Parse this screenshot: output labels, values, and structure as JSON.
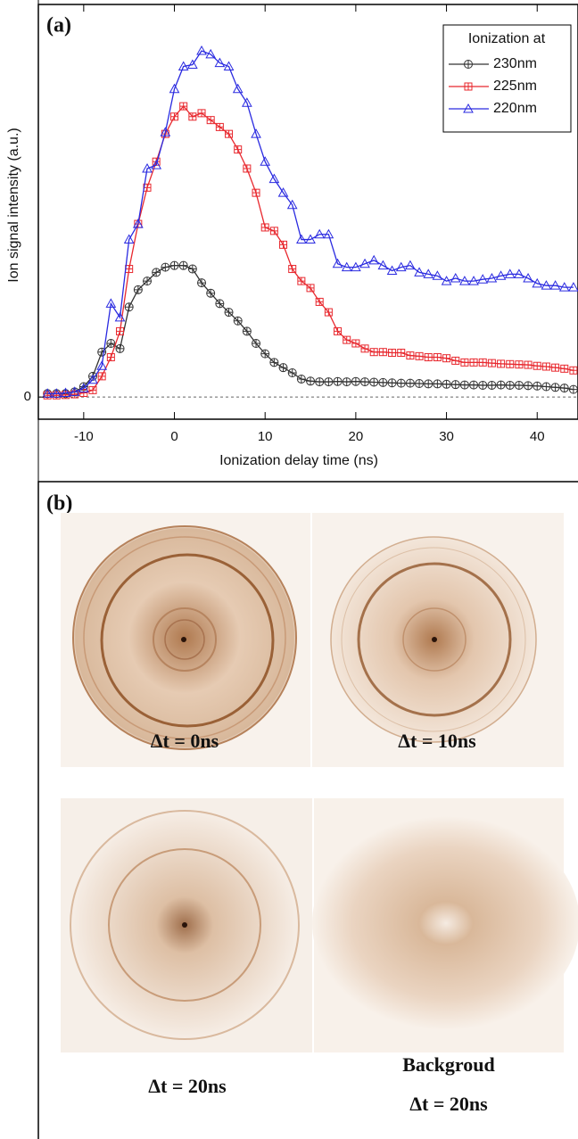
{
  "chart_data": {
    "type": "line",
    "panel_label": "(a)",
    "x_label": "Ionization delay time (ns)",
    "y_label": "Ion signal intensity (a.u.)",
    "legend_title": "Ionization at",
    "legend": "upper right",
    "x": [
      -14,
      -13,
      -12,
      -11,
      -10,
      -9,
      -8,
      -7,
      -6,
      -5,
      -4,
      -3,
      -2,
      -1,
      0,
      1,
      2,
      3,
      4,
      5,
      6,
      7,
      8,
      9,
      10,
      11,
      12,
      13,
      14,
      15,
      16,
      17,
      18,
      19,
      20,
      21,
      22,
      23,
      24,
      25,
      26,
      27,
      28,
      29,
      30,
      31,
      32,
      33,
      34,
      35,
      36,
      37,
      38,
      39,
      40,
      41,
      42,
      43,
      44
    ],
    "series": [
      {
        "name": "230nm",
        "color": "#333333",
        "marker": "circle-plus",
        "values": [
          0.01,
          0.01,
          0.01,
          0.015,
          0.03,
          0.06,
          0.13,
          0.155,
          0.14,
          0.26,
          0.31,
          0.335,
          0.36,
          0.375,
          0.38,
          0.38,
          0.37,
          0.33,
          0.3,
          0.27,
          0.245,
          0.22,
          0.19,
          0.155,
          0.125,
          0.1,
          0.085,
          0.07,
          0.052,
          0.046,
          0.044,
          0.044,
          0.045,
          0.044,
          0.045,
          0.044,
          0.043,
          0.042,
          0.041,
          0.04,
          0.04,
          0.039,
          0.038,
          0.038,
          0.037,
          0.036,
          0.035,
          0.035,
          0.034,
          0.034,
          0.035,
          0.034,
          0.034,
          0.033,
          0.032,
          0.03,
          0.028,
          0.026,
          0.022
        ]
      },
      {
        "name": "225nm",
        "color": "#e8282e",
        "marker": "square-plus",
        "values": [
          0.005,
          0.005,
          0.006,
          0.008,
          0.012,
          0.02,
          0.06,
          0.115,
          0.19,
          0.37,
          0.5,
          0.605,
          0.68,
          0.76,
          0.81,
          0.84,
          0.81,
          0.82,
          0.8,
          0.78,
          0.76,
          0.715,
          0.66,
          0.59,
          0.49,
          0.48,
          0.44,
          0.37,
          0.335,
          0.315,
          0.275,
          0.245,
          0.19,
          0.165,
          0.155,
          0.14,
          0.13,
          0.13,
          0.128,
          0.128,
          0.12,
          0.118,
          0.115,
          0.115,
          0.112,
          0.105,
          0.1,
          0.1,
          0.1,
          0.098,
          0.096,
          0.095,
          0.094,
          0.093,
          0.09,
          0.088,
          0.085,
          0.082,
          0.077
        ]
      },
      {
        "name": "220nm",
        "color": "#2a2ae0",
        "marker": "triangle",
        "values": [
          0.01,
          0.01,
          0.012,
          0.015,
          0.025,
          0.05,
          0.09,
          0.27,
          0.23,
          0.455,
          0.5,
          0.66,
          0.67,
          0.765,
          0.89,
          0.955,
          0.96,
          1.0,
          0.99,
          0.965,
          0.955,
          0.89,
          0.85,
          0.76,
          0.68,
          0.63,
          0.59,
          0.555,
          0.455,
          0.455,
          0.47,
          0.47,
          0.385,
          0.375,
          0.375,
          0.385,
          0.395,
          0.38,
          0.365,
          0.375,
          0.38,
          0.36,
          0.355,
          0.35,
          0.335,
          0.343,
          0.335,
          0.335,
          0.34,
          0.343,
          0.35,
          0.355,
          0.355,
          0.343,
          0.328,
          0.322,
          0.322,
          0.317,
          0.317
        ]
      }
    ],
    "xlim": [
      -15,
      44.5
    ],
    "xticks": [
      -10,
      0,
      10,
      20,
      30,
      40
    ],
    "ylim": [
      -0.064,
      1.134
    ],
    "yticks": [
      0
    ],
    "grid": true
  },
  "panel_b": {
    "label": "(b)",
    "images": [
      {
        "caption_lines": [
          "Δt = 0ns"
        ]
      },
      {
        "caption_lines": [
          "Δt = 10ns"
        ]
      },
      {
        "caption_lines": [
          "Δt = 20ns"
        ]
      },
      {
        "caption_lines": [
          "Backgroud",
          "Δt = 20ns"
        ]
      }
    ]
  }
}
